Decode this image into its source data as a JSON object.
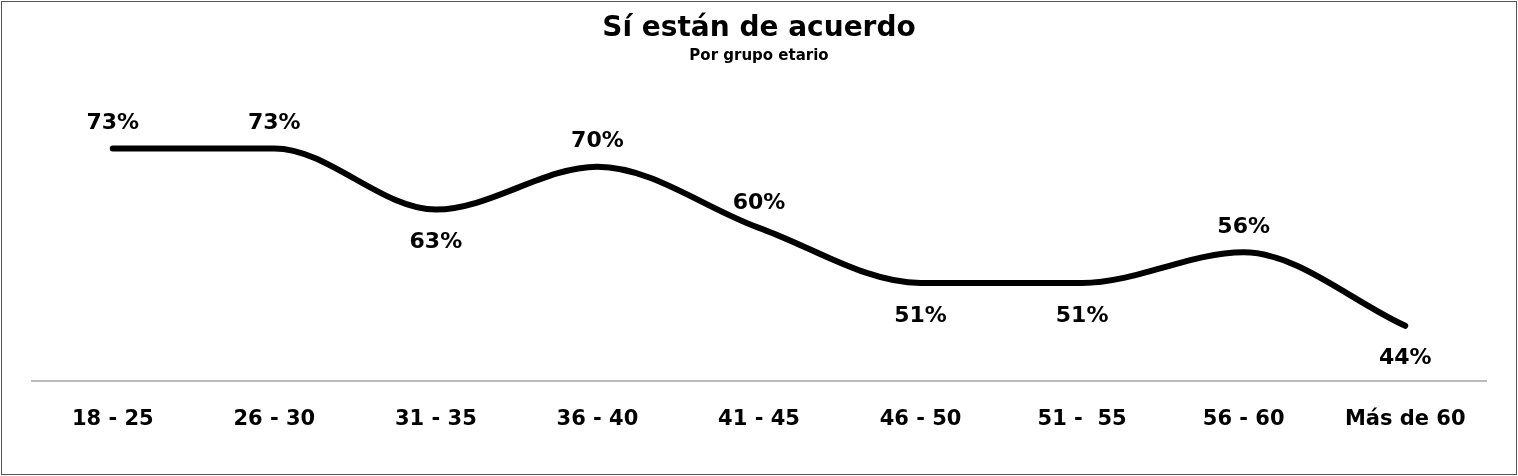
{
  "chart_data": {
    "type": "line",
    "title": "Sí están de acuerdo",
    "subtitle": "Por grupo etario",
    "categories": [
      "18 - 25",
      "26 - 30",
      "31 - 35",
      "36 - 40",
      "41 - 45",
      "46 - 50",
      "51 -  55",
      "56 - 60",
      "Más de 60"
    ],
    "series": [
      {
        "color": "#000000",
        "values": [
          73,
          73,
          63,
          70,
          60,
          51,
          51,
          56,
          44
        ],
        "value_labels": [
          "73%",
          "73%",
          "63%",
          "70%",
          "60%",
          "51%",
          "51%",
          "56%",
          "44%"
        ]
      }
    ],
    "marker": "none",
    "line_style": "solid",
    "grid": false,
    "legend": false,
    "tick_labels": "x"
  }
}
